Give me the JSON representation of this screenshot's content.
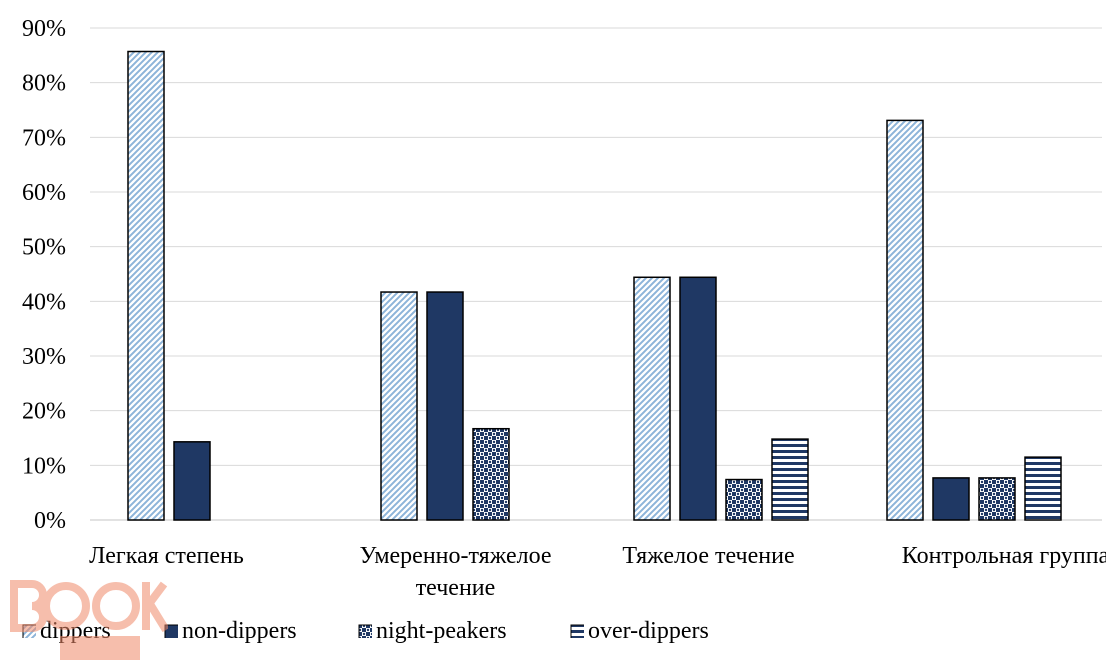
{
  "chart_data": {
    "type": "bar",
    "categories": [
      "Легкая степень",
      "Умеренно-тяжелое течение",
      "Тяжелое течение",
      "Контрольная группа"
    ],
    "category_lines": [
      [
        "Легкая степень"
      ],
      [
        "Умеренно-тяжелое",
        "течение"
      ],
      [
        "Тяжелое течение"
      ],
      [
        "Контрольная группа"
      ]
    ],
    "series": [
      {
        "name": "dippers",
        "values": [
          85.7,
          41.7,
          44.4,
          73.1
        ],
        "color": "#8db4d9",
        "pattern": "diagonal"
      },
      {
        "name": "non-dippers",
        "values": [
          14.3,
          41.7,
          44.4,
          7.7
        ],
        "color": "#1f3864",
        "pattern": "solid"
      },
      {
        "name": "night-peakers",
        "values": [
          null,
          16.7,
          7.4,
          7.7
        ],
        "color": "#1f3864",
        "pattern": "checker"
      },
      {
        "name": "over-dippers",
        "values": [
          null,
          null,
          14.8,
          11.5
        ],
        "color": "#1f3864",
        "pattern": "horizontal"
      }
    ],
    "yticks": [
      "0%",
      "10%",
      "20%",
      "30%",
      "40%",
      "50%",
      "60%",
      "70%",
      "80%",
      "90%"
    ],
    "ylim": [
      0,
      90
    ],
    "grid": true,
    "legend": "bottom",
    "xlabel": "",
    "ylabel": "",
    "title": ""
  },
  "watermark": {
    "text": "BOOK UP",
    "color": "#f08a6a"
  }
}
